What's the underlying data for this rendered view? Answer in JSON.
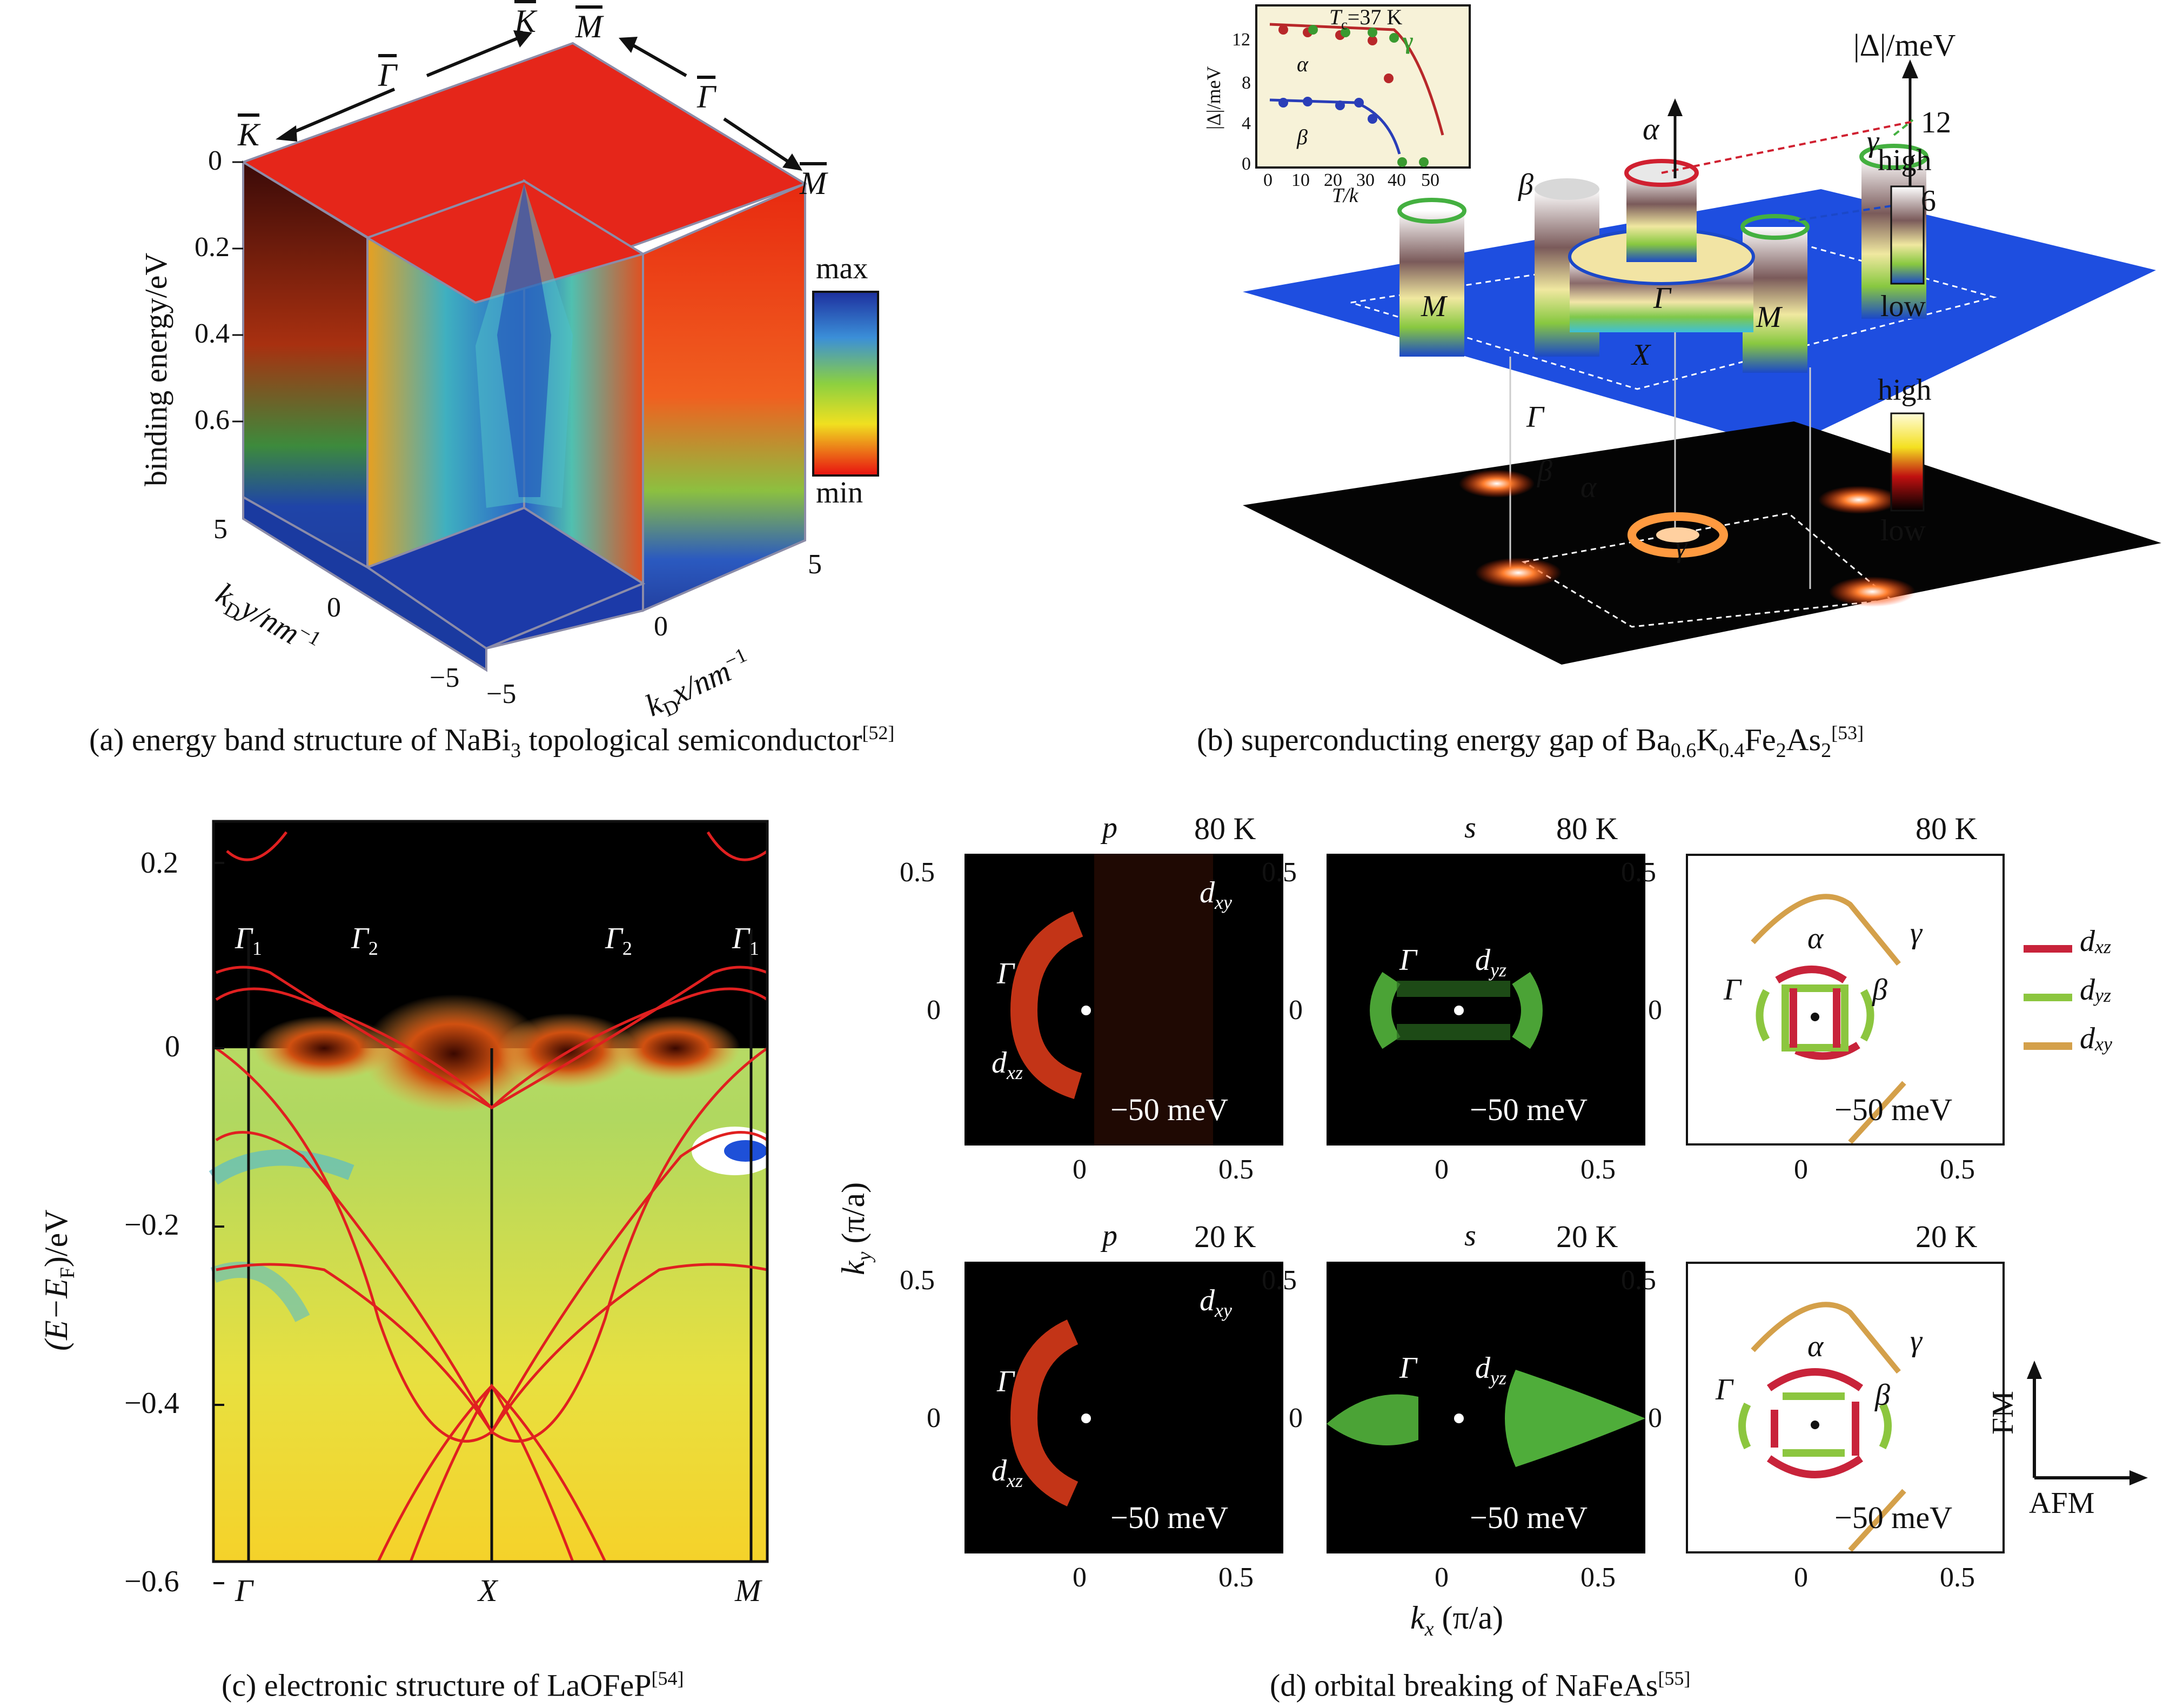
{
  "panel_a": {
    "caption": "(a) energy band structure of NaBi",
    "caption_sub": "3",
    "caption_tail": " topological semiconductor",
    "caption_ref": "[52]",
    "ylabel": "binding energy/eV",
    "yticks": [
      "0",
      "0.2",
      "0.4",
      "0.6"
    ],
    "sym_K1": "K",
    "sym_Gamma1": "Γ",
    "sym_K2": "K",
    "sym_M1": "M",
    "sym_Gamma2": "Γ",
    "sym_M2": "M",
    "ky_label": "k",
    "ky_label_tail": "y/nm",
    "x_label_tail": "x/nm",
    "ky_ticks": [
      "5",
      "0",
      "−5"
    ],
    "kx_ticks": [
      "−5",
      "0",
      "5"
    ],
    "colorbar_max": "max",
    "colorbar_min": "min"
  },
  "panel_b": {
    "caption": "(b) superconducting energy gap of Ba",
    "caption_ref": "[53]",
    "inset_tc": "T",
    "inset_tc_tail": "=37 K",
    "inset_ylabel": "|Δ|/meV",
    "inset_xlabel": "T/k",
    "inset_yticks": [
      "0",
      "4",
      "8",
      "12"
    ],
    "inset_xticks": [
      "0",
      "10",
      "20",
      "30",
      "40",
      "50"
    ],
    "inset_alpha": "α",
    "inset_beta": "β",
    "inset_gamma": "γ",
    "gap_axis": "|Δ|/meV",
    "gap_12": "12",
    "gap_6": "6",
    "high1": "high",
    "low1": "low",
    "high2": "high",
    "low2": "low",
    "lab_M1": "M",
    "lab_M2": "M",
    "lab_Gamma_top": "Γ",
    "lab_X": "X",
    "lab_Gamma_low": "Γ",
    "lab_alpha": "α",
    "lab_beta": "β",
    "lab_gamma": "γ",
    "lab_beta2": "β",
    "lab_alpha2": "α",
    "lab_gamma2": "γ"
  },
  "panel_c": {
    "caption": "(c) electronic structure of LaOFeP",
    "caption_ref": "[54]",
    "ylabel": "(E−E",
    "ylabel_tail": ")/eV",
    "yticks": [
      "0.2",
      "0",
      "−0.2",
      "−0.4",
      "−0.6"
    ],
    "xticks": [
      "Γ",
      "X",
      "M"
    ],
    "g1a": "Γ",
    "g2a": "Γ",
    "g2b": "Γ",
    "g1b": "Γ"
  },
  "panel_d": {
    "caption": "(d) orbital breaking of NaFeAs",
    "caption_ref": "[55]",
    "ylabel": "k",
    "ylabel_unit": " (π/a)",
    "xlabel": "k",
    "xlabel_unit": " (π/a)",
    "t80": "80 K",
    "t20": "20 K",
    "pol_p": "p",
    "pol_s": "s",
    "energy": "−50 meV",
    "ticks_y": [
      "0.5",
      "0"
    ],
    "ticks_x": [
      "0",
      "0.5"
    ],
    "gamma": "Γ",
    "alpha": "α",
    "beta": "β",
    "gam": "γ",
    "dxy": "d",
    "legend": [
      "d",
      "d",
      "d"
    ],
    "fm": "FM",
    "afm": "AFM"
  },
  "colors": {
    "red_band": "#e02020",
    "dxz": "#c8233a",
    "dyz": "#8cc63f",
    "dxy": "#d4a04a"
  }
}
